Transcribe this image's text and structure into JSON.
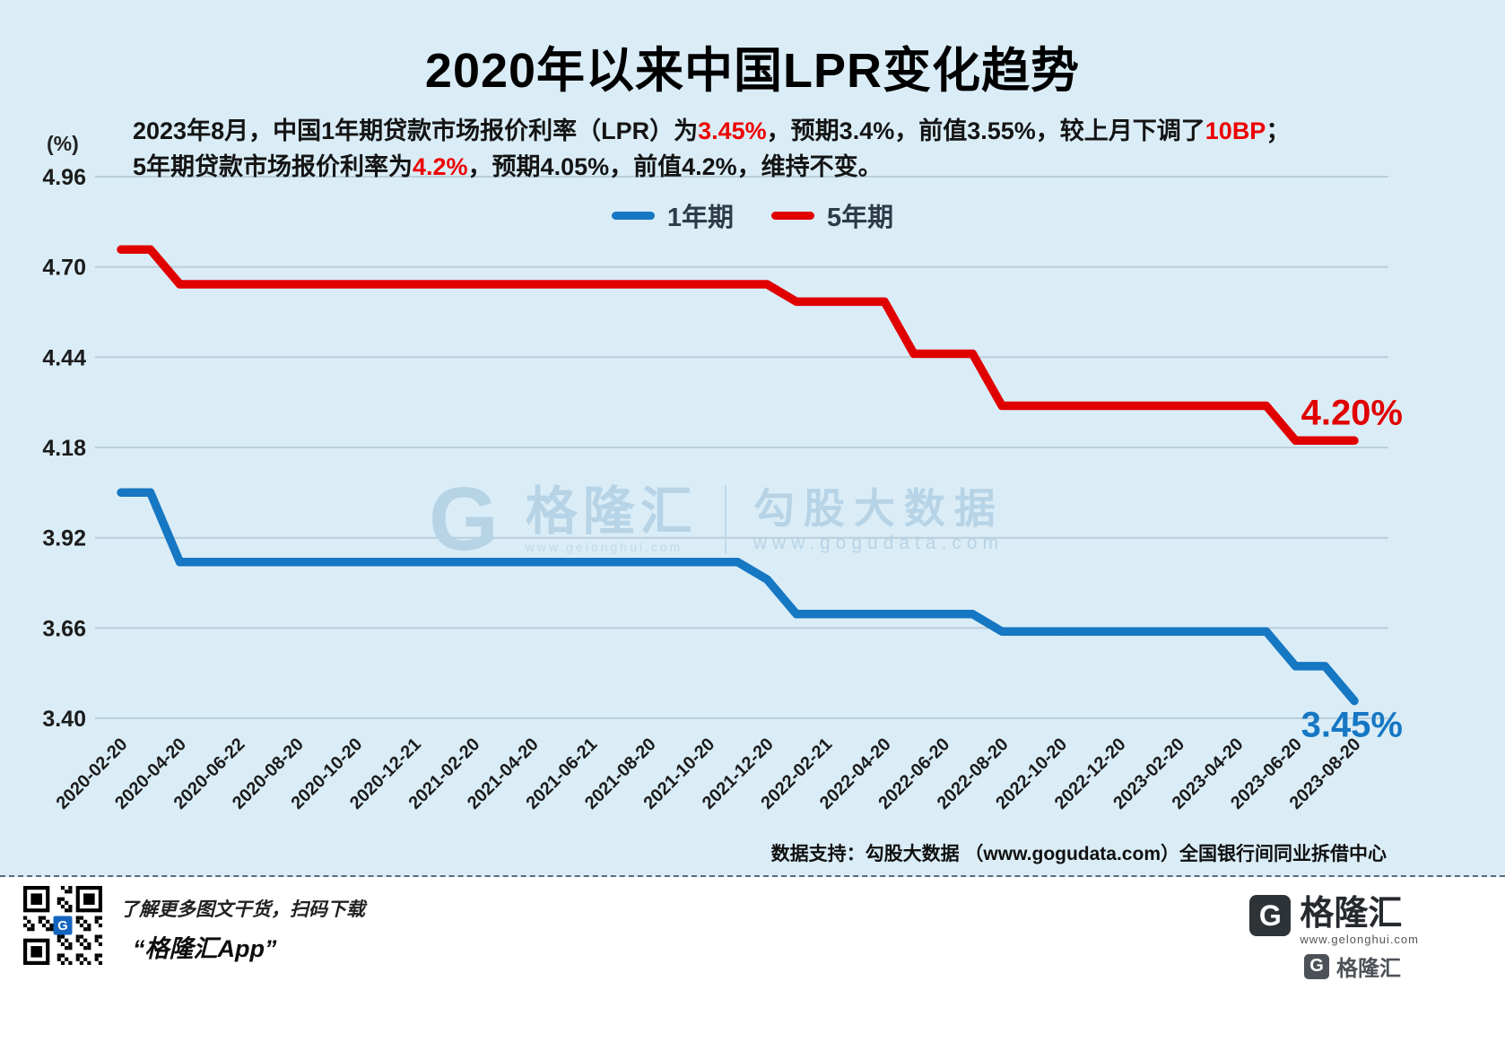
{
  "header": {
    "title": "2020年以来中国LPR变化趋势",
    "subtitle": {
      "l1p1": "2023年8月，中国1年期贷款市场报价利率（LPR）为",
      "l1p2": "3.45%",
      "l1p3": "，预期3.4%，前值3.55%，较上月下调了",
      "l1p4": "10BP",
      "l1p5": "；",
      "l2p1": "5年期贷款市场报价利率为",
      "l2p2": "4.2%",
      "l2p3": "，预期4.05%，前值4.2%，维持不变。"
    }
  },
  "chart_data": {
    "type": "line",
    "title": "2020年以来中国LPR变化趋势",
    "xlabel": "",
    "ylabel": "(%)",
    "ylim": [
      3.4,
      4.96
    ],
    "yticks": [
      4.96,
      4.7,
      4.44,
      4.18,
      3.92,
      3.66,
      3.4
    ],
    "grid": true,
    "legend_position": "top-center",
    "x_months": [
      "2020-02",
      "2020-03",
      "2020-04",
      "2020-05",
      "2020-06",
      "2020-07",
      "2020-08",
      "2020-09",
      "2020-10",
      "2020-11",
      "2020-12",
      "2021-01",
      "2021-02",
      "2021-03",
      "2021-04",
      "2021-05",
      "2021-06",
      "2021-07",
      "2021-08",
      "2021-09",
      "2021-10",
      "2021-11",
      "2021-12",
      "2022-01",
      "2022-02",
      "2022-03",
      "2022-04",
      "2022-05",
      "2022-06",
      "2022-07",
      "2022-08",
      "2022-09",
      "2022-10",
      "2022-11",
      "2022-12",
      "2023-01",
      "2023-02",
      "2023-03",
      "2023-04",
      "2023-05",
      "2023-06",
      "2023-07",
      "2023-08"
    ],
    "x_tick_labels": [
      "2020-02-20",
      "2020-04-20",
      "2020-06-22",
      "2020-08-20",
      "2020-10-20",
      "2020-12-21",
      "2021-02-20",
      "2021-04-20",
      "2021-06-21",
      "2021-08-20",
      "2021-10-20",
      "2021-12-20",
      "2022-02-21",
      "2022-04-20",
      "2022-06-20",
      "2022-08-20",
      "2022-10-20",
      "2022-12-20",
      "2023-02-20",
      "2023-04-20",
      "2023-06-20",
      "2023-08-20"
    ],
    "series": [
      {
        "name": "1年期",
        "color": "#1677c3",
        "end_label": "3.45%",
        "values": [
          4.05,
          4.05,
          3.85,
          3.85,
          3.85,
          3.85,
          3.85,
          3.85,
          3.85,
          3.85,
          3.85,
          3.85,
          3.85,
          3.85,
          3.85,
          3.85,
          3.85,
          3.85,
          3.85,
          3.85,
          3.85,
          3.85,
          3.8,
          3.7,
          3.7,
          3.7,
          3.7,
          3.7,
          3.7,
          3.7,
          3.65,
          3.65,
          3.65,
          3.65,
          3.65,
          3.65,
          3.65,
          3.65,
          3.65,
          3.65,
          3.55,
          3.55,
          3.45
        ]
      },
      {
        "name": "5年期",
        "color": "#e00000",
        "end_label": "4.20%",
        "values": [
          4.75,
          4.75,
          4.65,
          4.65,
          4.65,
          4.65,
          4.65,
          4.65,
          4.65,
          4.65,
          4.65,
          4.65,
          4.65,
          4.65,
          4.65,
          4.65,
          4.65,
          4.65,
          4.65,
          4.65,
          4.65,
          4.65,
          4.65,
          4.6,
          4.6,
          4.6,
          4.6,
          4.45,
          4.45,
          4.45,
          4.3,
          4.3,
          4.3,
          4.3,
          4.3,
          4.3,
          4.3,
          4.3,
          4.3,
          4.3,
          4.2,
          4.2,
          4.2
        ]
      }
    ]
  },
  "watermark": {
    "g": "G",
    "brand": "格隆汇",
    "brand_url": "www.gelonghui.com",
    "product": "勾股大数据",
    "product_url": "www.gogudata.com"
  },
  "footer": {
    "source": "数据支持：勾股大数据 （www.gogudata.com）全国银行间同业拆借中心",
    "qr_caption": "了解更多图文干货，扫码下载",
    "qr_app": "“格隆汇App”",
    "logo_g": "G",
    "logo_name": "格隆汇",
    "logo_url": "www.gelonghui.com",
    "logo_name2": "格隆汇"
  }
}
